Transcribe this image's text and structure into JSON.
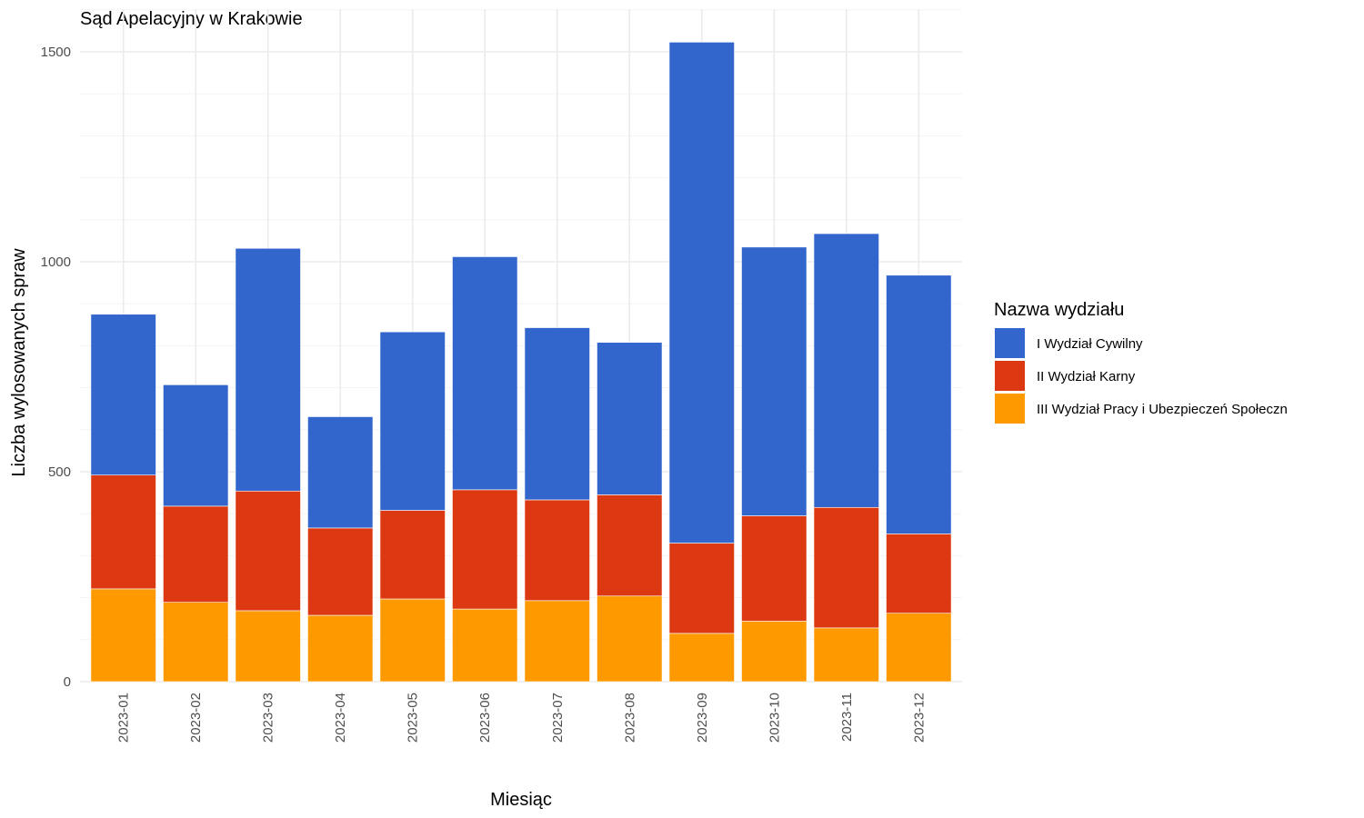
{
  "chart_data": {
    "type": "bar",
    "stacked": true,
    "title": "Sąd Apelacyjny w Krakowie",
    "xlabel": "Miesiąc",
    "ylabel": "Liczba wylosowanych spraw",
    "ylim": [
      0,
      1550
    ],
    "y_ticks": [
      0,
      500,
      1000,
      1500
    ],
    "grid": true,
    "legend_title": "Nazwa wydziału",
    "legend_position": "right",
    "categories": [
      "2023-01",
      "2023-02",
      "2023-03",
      "2023-04",
      "2023-05",
      "2023-06",
      "2023-07",
      "2023-08",
      "2023-09",
      "2023-10",
      "2023-11",
      "2023-12"
    ],
    "series": [
      {
        "name": "III Wydział Pracy i Ubezpieczeń Społeczn",
        "color": "#FF9900",
        "values": [
          221,
          189,
          169,
          158,
          197,
          173,
          193,
          204,
          115,
          144,
          128,
          163
        ]
      },
      {
        "name": "II Wydział Karny",
        "color": "#DC3912",
        "values": [
          271,
          229,
          285,
          208,
          211,
          284,
          240,
          241,
          215,
          251,
          287,
          189
        ]
      },
      {
        "name": "I Wydział Cywilny",
        "color": "#3366CC",
        "values": [
          383,
          289,
          578,
          265,
          425,
          555,
          410,
          363,
          1193,
          640,
          652,
          616
        ]
      }
    ],
    "legend_order": [
      "I Wydział Cywilny",
      "II Wydział Karny",
      "III Wydział Pracy i Ubezpieczeń Społeczn"
    ]
  }
}
